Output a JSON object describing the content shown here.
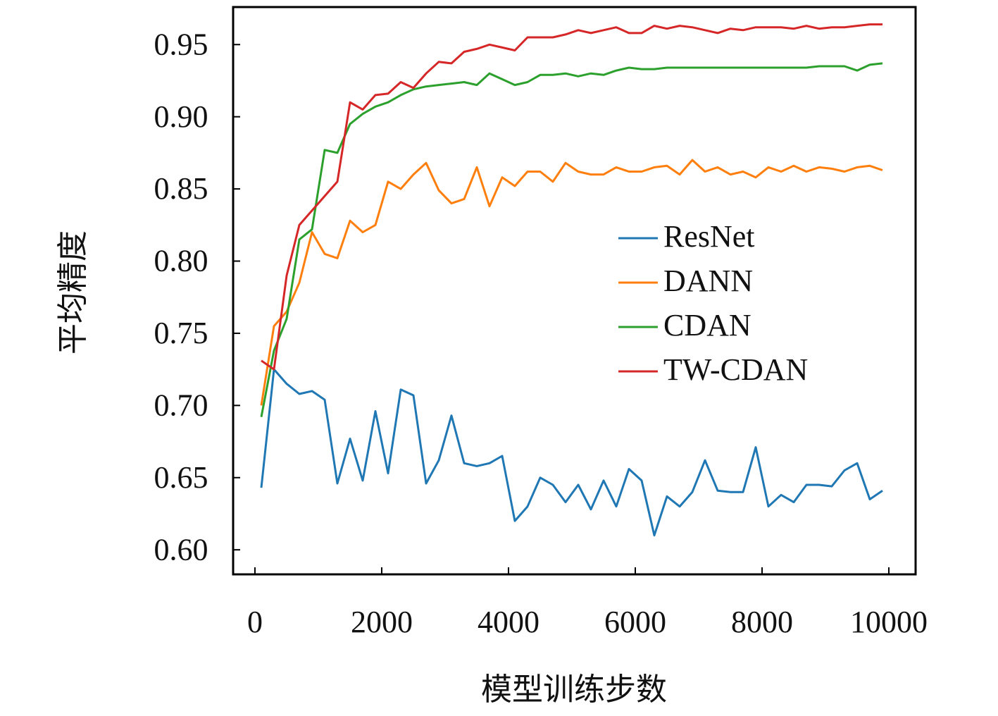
{
  "chart_data": {
    "type": "line",
    "x_label": "模型训练步数",
    "y_label": "平均精度",
    "x": [
      100,
      300,
      500,
      700,
      900,
      1100,
      1300,
      1500,
      1700,
      1900,
      2100,
      2300,
      2500,
      2700,
      2900,
      3100,
      3300,
      3500,
      3700,
      3900,
      4100,
      4300,
      4500,
      4700,
      4900,
      5100,
      5300,
      5500,
      5700,
      5900,
      6100,
      6300,
      6500,
      6700,
      6900,
      7100,
      7300,
      7500,
      7700,
      7900,
      8100,
      8300,
      8500,
      8700,
      8900,
      9100,
      9300,
      9500,
      9700,
      9900
    ],
    "series": [
      {
        "name": "ResNet",
        "color": "#1f77b4",
        "values": [
          0.643,
          0.725,
          0.715,
          0.708,
          0.71,
          0.704,
          0.646,
          0.677,
          0.648,
          0.696,
          0.653,
          0.711,
          0.707,
          0.646,
          0.662,
          0.693,
          0.66,
          0.658,
          0.66,
          0.665,
          0.62,
          0.63,
          0.65,
          0.645,
          0.633,
          0.645,
          0.628,
          0.648,
          0.63,
          0.656,
          0.648,
          0.61,
          0.637,
          0.63,
          0.64,
          0.662,
          0.641,
          0.64,
          0.64,
          0.671,
          0.63,
          0.638,
          0.633,
          0.645,
          0.645,
          0.644,
          0.655,
          0.66,
          0.635,
          0.641
        ]
      },
      {
        "name": "DANN",
        "color": "#ff7f0e",
        "values": [
          0.7,
          0.755,
          0.765,
          0.785,
          0.82,
          0.805,
          0.802,
          0.828,
          0.82,
          0.825,
          0.855,
          0.85,
          0.86,
          0.868,
          0.849,
          0.84,
          0.843,
          0.865,
          0.838,
          0.858,
          0.852,
          0.862,
          0.862,
          0.855,
          0.868,
          0.862,
          0.86,
          0.86,
          0.865,
          0.862,
          0.862,
          0.865,
          0.866,
          0.86,
          0.87,
          0.862,
          0.865,
          0.86,
          0.862,
          0.858,
          0.865,
          0.862,
          0.866,
          0.862,
          0.865,
          0.864,
          0.862,
          0.865,
          0.866,
          0.863
        ]
      },
      {
        "name": "CDAN",
        "color": "#2ca02c",
        "values": [
          0.692,
          0.738,
          0.76,
          0.815,
          0.822,
          0.877,
          0.875,
          0.895,
          0.902,
          0.907,
          0.91,
          0.915,
          0.919,
          0.921,
          0.922,
          0.923,
          0.924,
          0.922,
          0.93,
          0.926,
          0.922,
          0.924,
          0.929,
          0.929,
          0.93,
          0.928,
          0.93,
          0.929,
          0.932,
          0.934,
          0.933,
          0.933,
          0.934,
          0.934,
          0.934,
          0.934,
          0.934,
          0.934,
          0.934,
          0.934,
          0.934,
          0.934,
          0.934,
          0.934,
          0.935,
          0.935,
          0.935,
          0.932,
          0.936,
          0.937
        ]
      },
      {
        "name": "TW-CDAN",
        "color": "#d62728",
        "values": [
          0.731,
          0.725,
          0.79,
          0.825,
          0.835,
          0.845,
          0.855,
          0.91,
          0.905,
          0.915,
          0.916,
          0.924,
          0.92,
          0.93,
          0.938,
          0.937,
          0.945,
          0.947,
          0.95,
          0.948,
          0.946,
          0.955,
          0.955,
          0.955,
          0.957,
          0.96,
          0.958,
          0.96,
          0.962,
          0.958,
          0.958,
          0.963,
          0.961,
          0.963,
          0.962,
          0.96,
          0.958,
          0.961,
          0.96,
          0.962,
          0.962,
          0.962,
          0.961,
          0.963,
          0.961,
          0.962,
          0.962,
          0.963,
          0.964,
          0.964
        ]
      }
    ],
    "xlim": [
      -344,
      10422
    ],
    "ylim": [
      0.583,
      0.976
    ],
    "xticks": [
      0,
      2000,
      4000,
      6000,
      8000,
      10000
    ],
    "yticks": [
      {
        "value": 0.6,
        "label": "0.60"
      },
      0.65,
      {
        "value": 0.7,
        "label": "0.70"
      },
      0.75,
      {
        "value": 0.8,
        "label": "0.80"
      },
      0.85,
      {
        "value": 0.9,
        "label": "0.90"
      },
      0.95
    ],
    "legend": "center right",
    "grid": false
  }
}
